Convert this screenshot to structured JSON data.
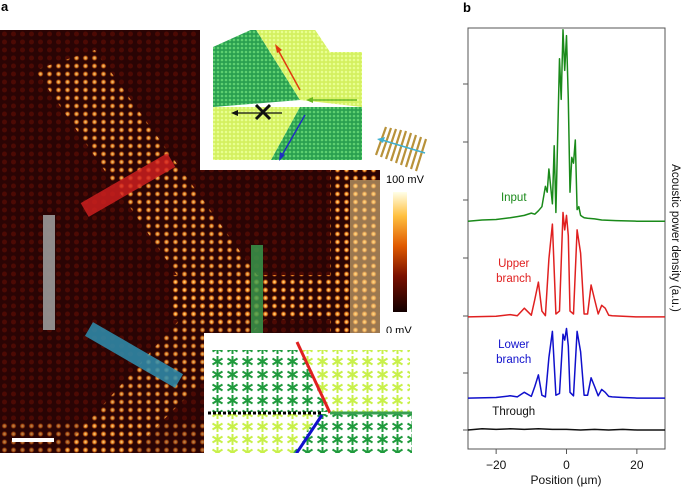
{
  "panel_a": {
    "label": "a",
    "colorbar": {
      "max_label": "100 mV",
      "min_label": "0 mV"
    },
    "colors": {
      "bar_red": "#d42020",
      "bar_blue": "#2f8fb0",
      "bar_green": "#3aa050",
      "bar_gray": "#9a9a9a",
      "lattice_dark": "#1f9a3c",
      "lattice_light": "#c8f04a",
      "idt": "#b8923a"
    }
  },
  "chart_data": {
    "type": "line",
    "panel_label": "b",
    "xlabel": "Position (µm)",
    "ylabel": "Acoustic power density (a.u.)",
    "xlim": [
      -28,
      28
    ],
    "xticks": [
      -20,
      0,
      20
    ],
    "xtick_labels": [
      "−20",
      "0",
      "20"
    ],
    "grid": false,
    "series": [
      {
        "name": "Input",
        "label_lines": [
          "Input"
        ],
        "color": "#1a8a1a",
        "offset": 3.6,
        "x": [
          -28,
          -24,
          -20,
          -16,
          -14,
          -12,
          -10,
          -9,
          -8,
          -7,
          -6,
          -5.5,
          -5,
          -4,
          -3.5,
          -3,
          -2,
          -1.5,
          -1,
          -0.5,
          0,
          0.5,
          1,
          1.5,
          2,
          2.5,
          3,
          3.5,
          4,
          4.5,
          5,
          6,
          8,
          10,
          14,
          20,
          28
        ],
        "y": [
          0,
          0.02,
          0.03,
          0.06,
          0.08,
          0.1,
          0.14,
          0.12,
          0.18,
          0.25,
          0.6,
          0.5,
          0.9,
          0.3,
          1.3,
          0.15,
          2.8,
          2.1,
          3.3,
          2.6,
          3.2,
          2.1,
          0.5,
          1.1,
          1.0,
          1.4,
          0.2,
          0.25,
          0.1,
          0.08,
          0.06,
          0.05,
          0.04,
          0.02,
          0.01,
          0,
          0
        ]
      },
      {
        "name": "Upper branch",
        "label_lines": [
          "Upper",
          "branch"
        ],
        "color": "#e02020",
        "offset": 1.95,
        "x": [
          -28,
          -20,
          -16,
          -14,
          -12,
          -10,
          -9,
          -8,
          -7,
          -6,
          -5,
          -4,
          -3,
          -2,
          -1,
          -0.5,
          0,
          0.5,
          1,
          2,
          3,
          4,
          5,
          6,
          7,
          8,
          9,
          10,
          11,
          12,
          13,
          16,
          20,
          28
        ],
        "y": [
          0,
          0.01,
          0.04,
          0.02,
          0.15,
          0.03,
          0.3,
          0.6,
          0.1,
          0.02,
          1.0,
          1.6,
          0.05,
          0.1,
          1.8,
          1.5,
          1.75,
          1.4,
          0.1,
          0.05,
          1.5,
          1.1,
          0.05,
          0.05,
          0.55,
          0.3,
          0.05,
          0.2,
          0.15,
          0.03,
          0.02,
          0.01,
          0,
          0
        ]
      },
      {
        "name": "Lower branch",
        "label_lines": [
          "Lower",
          "branch"
        ],
        "color": "#1010cc",
        "offset": 0.55,
        "x": [
          -28,
          -20,
          -16,
          -14,
          -12,
          -10,
          -9,
          -8,
          -7,
          -6,
          -5,
          -4,
          -3,
          -2,
          -1,
          -0.5,
          0,
          0.5,
          1,
          2,
          3,
          4,
          5,
          6,
          7,
          8,
          9,
          10,
          11,
          12,
          13,
          16,
          20,
          28
        ],
        "y": [
          0,
          0.01,
          0.04,
          0.02,
          0.1,
          0.03,
          0.2,
          0.4,
          0.05,
          0.02,
          0.7,
          1.15,
          0.05,
          0.08,
          1.1,
          1.0,
          1.2,
          0.9,
          0.1,
          0.04,
          1.15,
          0.8,
          0.05,
          0.05,
          0.35,
          0.2,
          0.04,
          0.15,
          0.1,
          0.03,
          0.02,
          0.01,
          0,
          0
        ]
      },
      {
        "name": "Through",
        "label_lines": [
          "Through"
        ],
        "color": "#111111",
        "offset": 0.0,
        "x": [
          -28,
          -24,
          -20,
          -16,
          -12,
          -8,
          -4,
          0,
          4,
          8,
          12,
          16,
          20,
          24,
          28
        ],
        "y": [
          0,
          0.02,
          0.01,
          0.02,
          0.01,
          0.02,
          0.01,
          0.01,
          0.0,
          0.01,
          0.0,
          0.01,
          0.0,
          0.0,
          0
        ]
      }
    ]
  }
}
